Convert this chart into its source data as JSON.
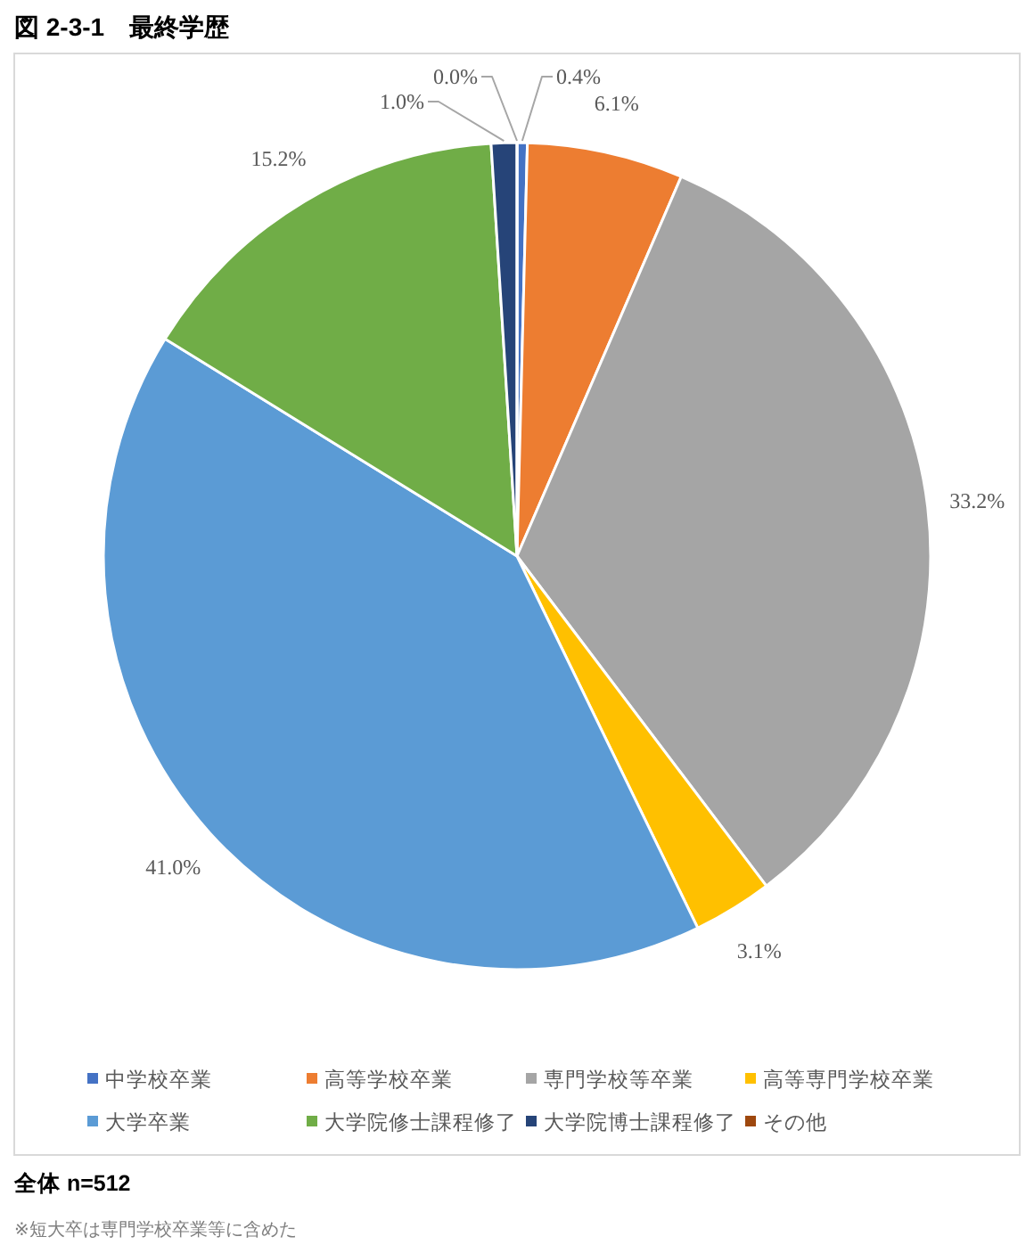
{
  "chart_data": {
    "type": "pie",
    "title": "図 2-3-1　最終学歴",
    "categories": [
      "中学校卒業",
      "高等学校卒業",
      "専門学校等卒業",
      "高等専門学校卒業",
      "大学卒業",
      "大学院修士課程修了",
      "大学院博士課程修了",
      "その他"
    ],
    "values": [
      0.4,
      6.1,
      33.2,
      3.1,
      41.0,
      15.2,
      1.0,
      0.0
    ],
    "value_labels": [
      "0.4%",
      "6.1%",
      "33.2%",
      "3.1%",
      "41.0%",
      "15.2%",
      "1.0%",
      "0.0%"
    ],
    "colors": [
      "#4472c4",
      "#ed7d31",
      "#a5a5a5",
      "#ffc000",
      "#5b9bd5",
      "#70ad47",
      "#264478",
      "#9e480e"
    ],
    "legend": "bottom",
    "annotations": [
      "全体 n=512",
      "※短大卒は専門学校卒業等に含めた"
    ]
  }
}
